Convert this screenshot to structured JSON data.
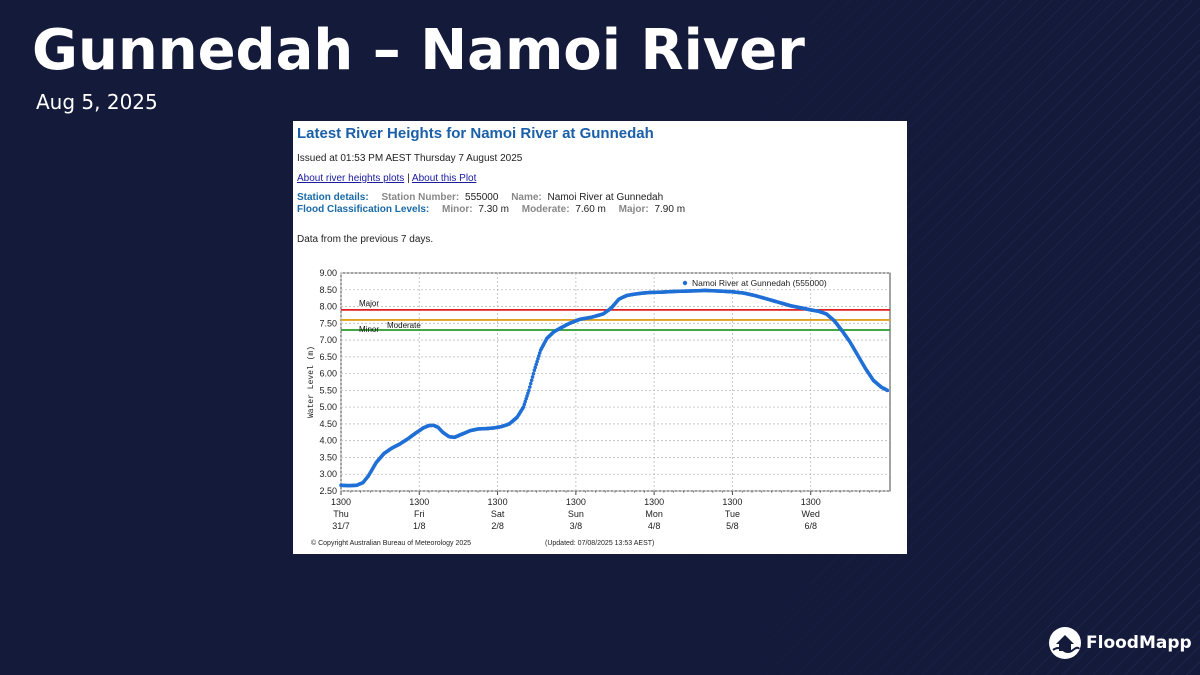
{
  "slide": {
    "title": "Gunnedah – Namoi River",
    "date": "Aug 5, 2025"
  },
  "panel": {
    "title": "Latest River Heights for Namoi River at Gunnedah",
    "issued": "Issued at 01:53 PM AEST Thursday 7 August 2025",
    "link1": "About river heights plots",
    "separator": "|",
    "link2": "About this Plot",
    "station_label": "Station details:",
    "station_number_label": "Station Number:",
    "station_number": "555000",
    "name_label": "Name:",
    "name": "Namoi River at Gunnedah",
    "flood_label": "Flood Classification Levels:",
    "minor_label": "Minor:",
    "minor": "7.30 m",
    "moderate_label": "Moderate:",
    "moderate": "7.60 m",
    "major_label": "Major:",
    "major": "7.90 m",
    "prev": "Data from the previous 7 days.",
    "copyright": "© Copyright Australian Bureau of Meteorology 2025",
    "updated": "(Updated: 07/08/2025 13:53 AEST)"
  },
  "chart_data": {
    "type": "scatter",
    "ylabel": "Water Level (m)",
    "ylim": [
      2.5,
      9.0
    ],
    "yticks": [
      "9.00",
      "8.50",
      "8.00",
      "7.50",
      "7.00",
      "6.50",
      "6.00",
      "5.50",
      "5.00",
      "4.50",
      "4.00",
      "3.50",
      "3.00",
      "2.50"
    ],
    "xlim": [
      0,
      7.0
    ],
    "xticks": [
      {
        "x": 0,
        "time": "1300",
        "day": "Thu",
        "date": "31/7"
      },
      {
        "x": 1,
        "time": "1300",
        "day": "Fri",
        "date": "1/8"
      },
      {
        "x": 2,
        "time": "1300",
        "day": "Sat",
        "date": "2/8"
      },
      {
        "x": 3,
        "time": "1300",
        "day": "Sun",
        "date": "3/8"
      },
      {
        "x": 4,
        "time": "1300",
        "day": "Mon",
        "date": "4/8"
      },
      {
        "x": 5,
        "time": "1300",
        "day": "Tue",
        "date": "5/8"
      },
      {
        "x": 6,
        "time": "1300",
        "day": "Wed",
        "date": "6/8"
      }
    ],
    "grid": true,
    "legend": "top-right",
    "series_name": "Namoi River at Gunnedah (555000)",
    "series_color": "#1f6fd6",
    "thresholds": [
      {
        "name": "Major",
        "value": 7.9,
        "color": "#e02020"
      },
      {
        "name": "Moderate",
        "value": 7.6,
        "color": "#e0a020"
      },
      {
        "name": "Minor",
        "value": 7.3,
        "color": "#2a9a2a"
      }
    ],
    "points": [
      [
        0.0,
        2.67
      ],
      [
        0.1,
        2.66
      ],
      [
        0.2,
        2.67
      ],
      [
        0.28,
        2.75
      ],
      [
        0.35,
        2.95
      ],
      [
        0.45,
        3.35
      ],
      [
        0.55,
        3.62
      ],
      [
        0.65,
        3.78
      ],
      [
        0.75,
        3.9
      ],
      [
        0.85,
        4.05
      ],
      [
        0.95,
        4.22
      ],
      [
        1.05,
        4.38
      ],
      [
        1.12,
        4.45
      ],
      [
        1.18,
        4.46
      ],
      [
        1.24,
        4.4
      ],
      [
        1.3,
        4.25
      ],
      [
        1.38,
        4.12
      ],
      [
        1.45,
        4.1
      ],
      [
        1.55,
        4.2
      ],
      [
        1.65,
        4.3
      ],
      [
        1.75,
        4.35
      ],
      [
        1.85,
        4.36
      ],
      [
        1.95,
        4.38
      ],
      [
        2.05,
        4.42
      ],
      [
        2.15,
        4.5
      ],
      [
        2.25,
        4.7
      ],
      [
        2.33,
        5.0
      ],
      [
        2.4,
        5.5
      ],
      [
        2.47,
        6.1
      ],
      [
        2.55,
        6.7
      ],
      [
        2.63,
        7.05
      ],
      [
        2.72,
        7.25
      ],
      [
        2.82,
        7.38
      ],
      [
        2.92,
        7.5
      ],
      [
        3.05,
        7.62
      ],
      [
        3.2,
        7.68
      ],
      [
        3.35,
        7.78
      ],
      [
        3.45,
        7.95
      ],
      [
        3.55,
        8.22
      ],
      [
        3.65,
        8.33
      ],
      [
        3.75,
        8.37
      ],
      [
        3.85,
        8.4
      ],
      [
        3.95,
        8.42
      ],
      [
        4.1,
        8.43
      ],
      [
        4.25,
        8.45
      ],
      [
        4.4,
        8.46
      ],
      [
        4.55,
        8.47
      ],
      [
        4.65,
        8.48
      ],
      [
        4.75,
        8.47
      ],
      [
        4.85,
        8.46
      ],
      [
        5.0,
        8.44
      ],
      [
        5.15,
        8.4
      ],
      [
        5.3,
        8.32
      ],
      [
        5.45,
        8.22
      ],
      [
        5.6,
        8.12
      ],
      [
        5.75,
        8.02
      ],
      [
        5.9,
        7.95
      ],
      [
        6.0,
        7.9
      ],
      [
        6.1,
        7.86
      ],
      [
        6.2,
        7.78
      ],
      [
        6.3,
        7.58
      ],
      [
        6.4,
        7.28
      ],
      [
        6.5,
        6.95
      ],
      [
        6.6,
        6.55
      ],
      [
        6.7,
        6.15
      ],
      [
        6.8,
        5.8
      ],
      [
        6.9,
        5.6
      ],
      [
        6.98,
        5.5
      ]
    ]
  },
  "logo": {
    "text": "FloodMapp"
  }
}
